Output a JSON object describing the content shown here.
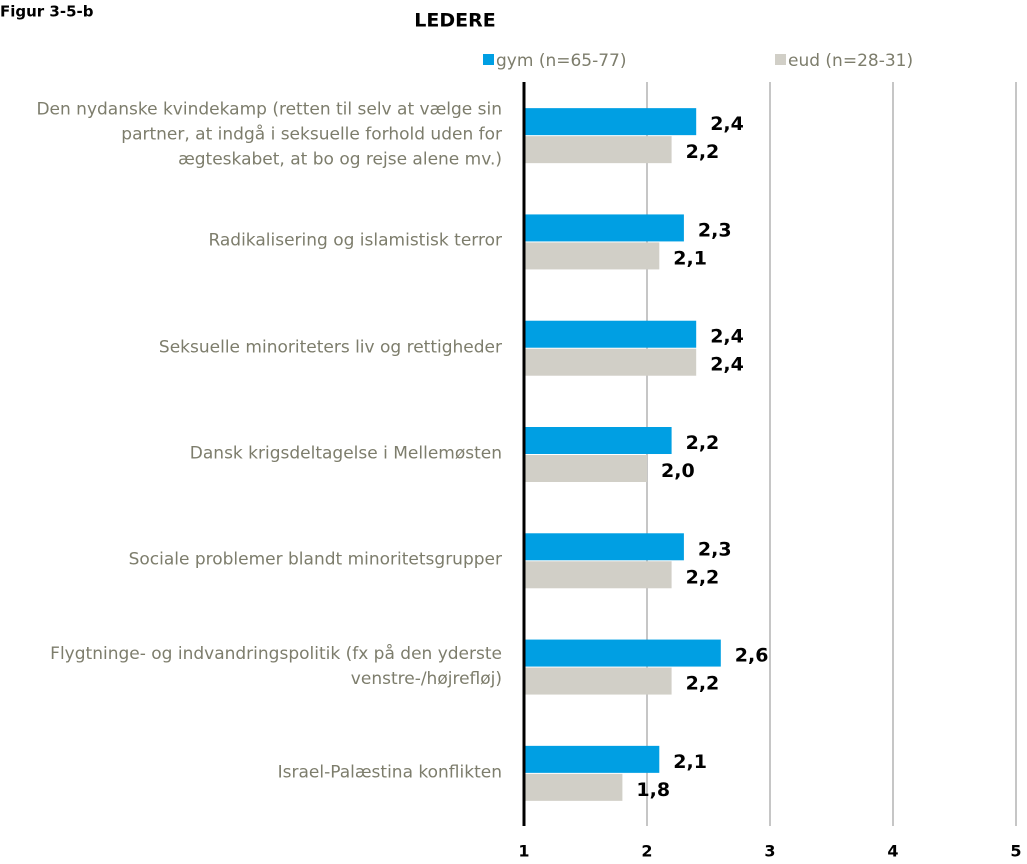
{
  "figure_label": "Figur 3-5-b",
  "chart_data": {
    "type": "bar",
    "orientation": "horizontal",
    "title": "LEDERE",
    "categories": [
      "Den nydanske kvindekamp (retten til selv at vælge sin partner, at indgå i seksuelle forhold uden for ægteskabet, at bo og rejse alene mv.)",
      "Radikalisering og islamistisk terror",
      "Seksuelle minoriteters liv og rettigheder",
      "Dansk krigsdeltagelse i Mellemøsten",
      "Sociale problemer blandt minoritetsgrupper",
      "Flygtninge- og indvandringspolitik (fx på den yderste venstre-/højrefløj)",
      "Israel-Palæstina konflikten"
    ],
    "series": [
      {
        "name": "gym (n=65-77)",
        "color": "#009fe3",
        "values": [
          2.4,
          2.3,
          2.4,
          2.2,
          2.3,
          2.6,
          2.1
        ],
        "value_labels": [
          "2,4",
          "2,3",
          "2,4",
          "2,2",
          "2,3",
          "2,6",
          "2,1"
        ]
      },
      {
        "name": "eud (n=28-31)",
        "color": "#d1cfc7",
        "values": [
          2.2,
          2.1,
          2.4,
          2.0,
          2.2,
          2.2,
          1.8
        ],
        "value_labels": [
          "2,2",
          "2,1",
          "2,4",
          "2,0",
          "2,2",
          "2,2",
          "1,8"
        ]
      }
    ],
    "xlim": [
      1,
      5
    ],
    "xticks": [
      1,
      2,
      3,
      4,
      5
    ],
    "grid": true
  }
}
